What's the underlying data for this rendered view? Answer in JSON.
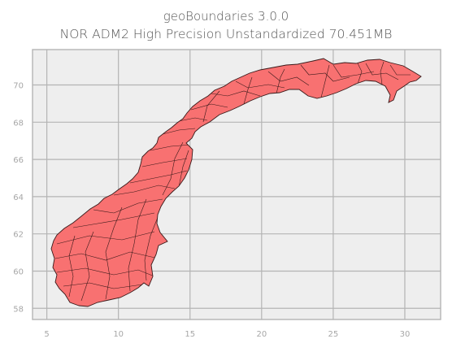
{
  "title": "geoBoundaries 3.0.0",
  "subtitle": "NOR ADM2 High Precision Unstandardized 70.451MB",
  "map": {
    "region": "Norway",
    "admin_level": "ADM2",
    "fill_color": "#f87171",
    "edge_color": "#3a1a1a",
    "background_color": "#eeeeee",
    "grid_color": "#b4b4b4",
    "grid": true,
    "x_ticks": [
      "5",
      "10",
      "15",
      "20",
      "25",
      "30"
    ],
    "y_ticks": [
      "58",
      "60",
      "62",
      "64",
      "66",
      "68",
      "70"
    ],
    "xlim": [
      4.0,
      32.5
    ],
    "ylim": [
      57.4,
      71.9
    ]
  }
}
